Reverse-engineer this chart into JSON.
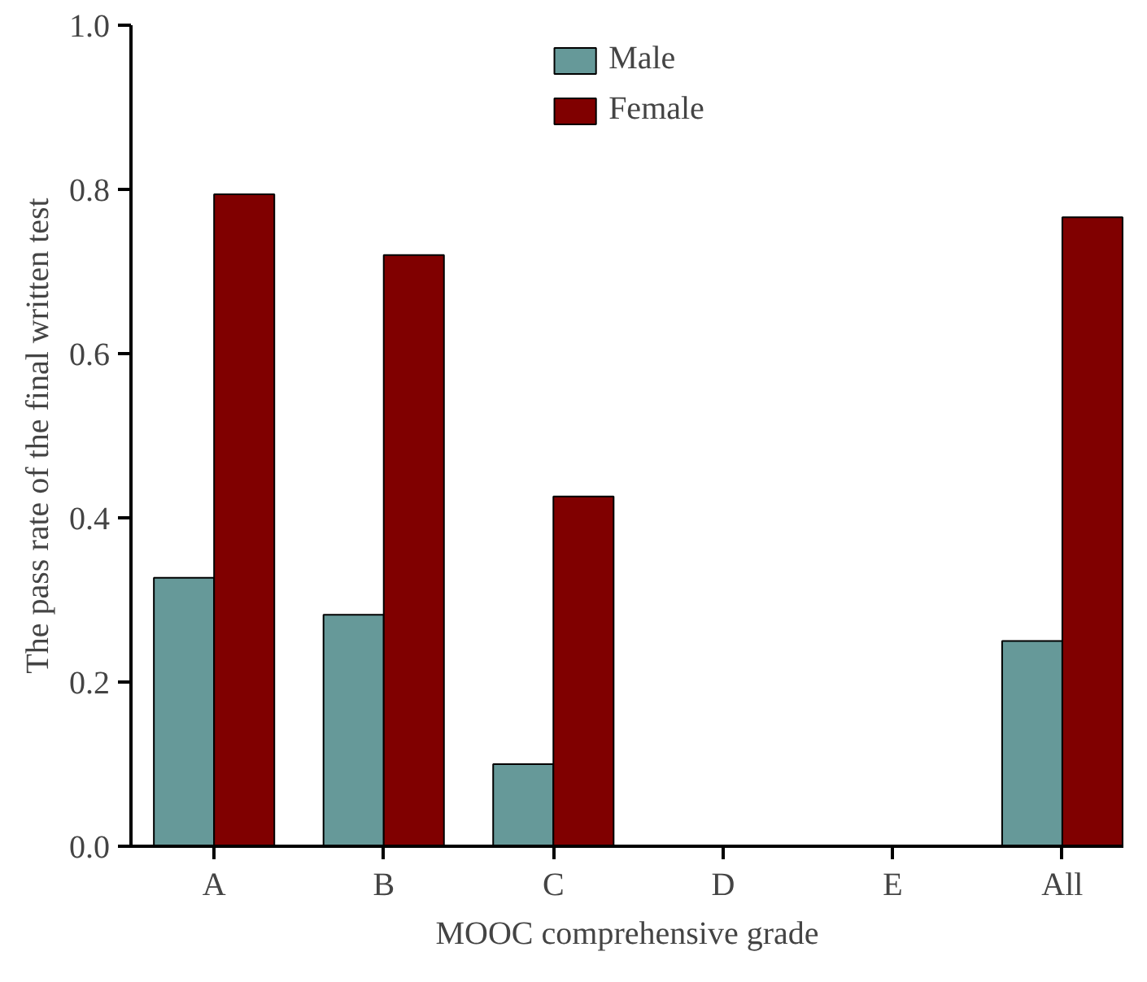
{
  "chart_data": {
    "type": "bar",
    "xlabel": "MOOC comprehensive grade",
    "ylabel": "The pass rate of the final written test",
    "categories": [
      "A",
      "B",
      "C",
      "D",
      "E",
      "All"
    ],
    "series": [
      {
        "name": "Male",
        "color": "#669999",
        "values": [
          0.327,
          0.282,
          0.1,
          0,
          0,
          0.25
        ]
      },
      {
        "name": "Female",
        "color": "#800000",
        "values": [
          0.794,
          0.72,
          0.426,
          0,
          0,
          0.766
        ]
      }
    ],
    "ylim": [
      0,
      1.0
    ],
    "yticks": [
      {
        "value": 0,
        "label": "0.0"
      },
      {
        "value": 0.2,
        "label": "0.2"
      },
      {
        "value": 0.4,
        "label": "0.4"
      },
      {
        "value": 0.6,
        "label": "0.6"
      },
      {
        "value": 0.8,
        "label": "0.8"
      },
      {
        "value": 1.0,
        "label": "1.0"
      }
    ],
    "grid": false,
    "legend": "top"
  }
}
